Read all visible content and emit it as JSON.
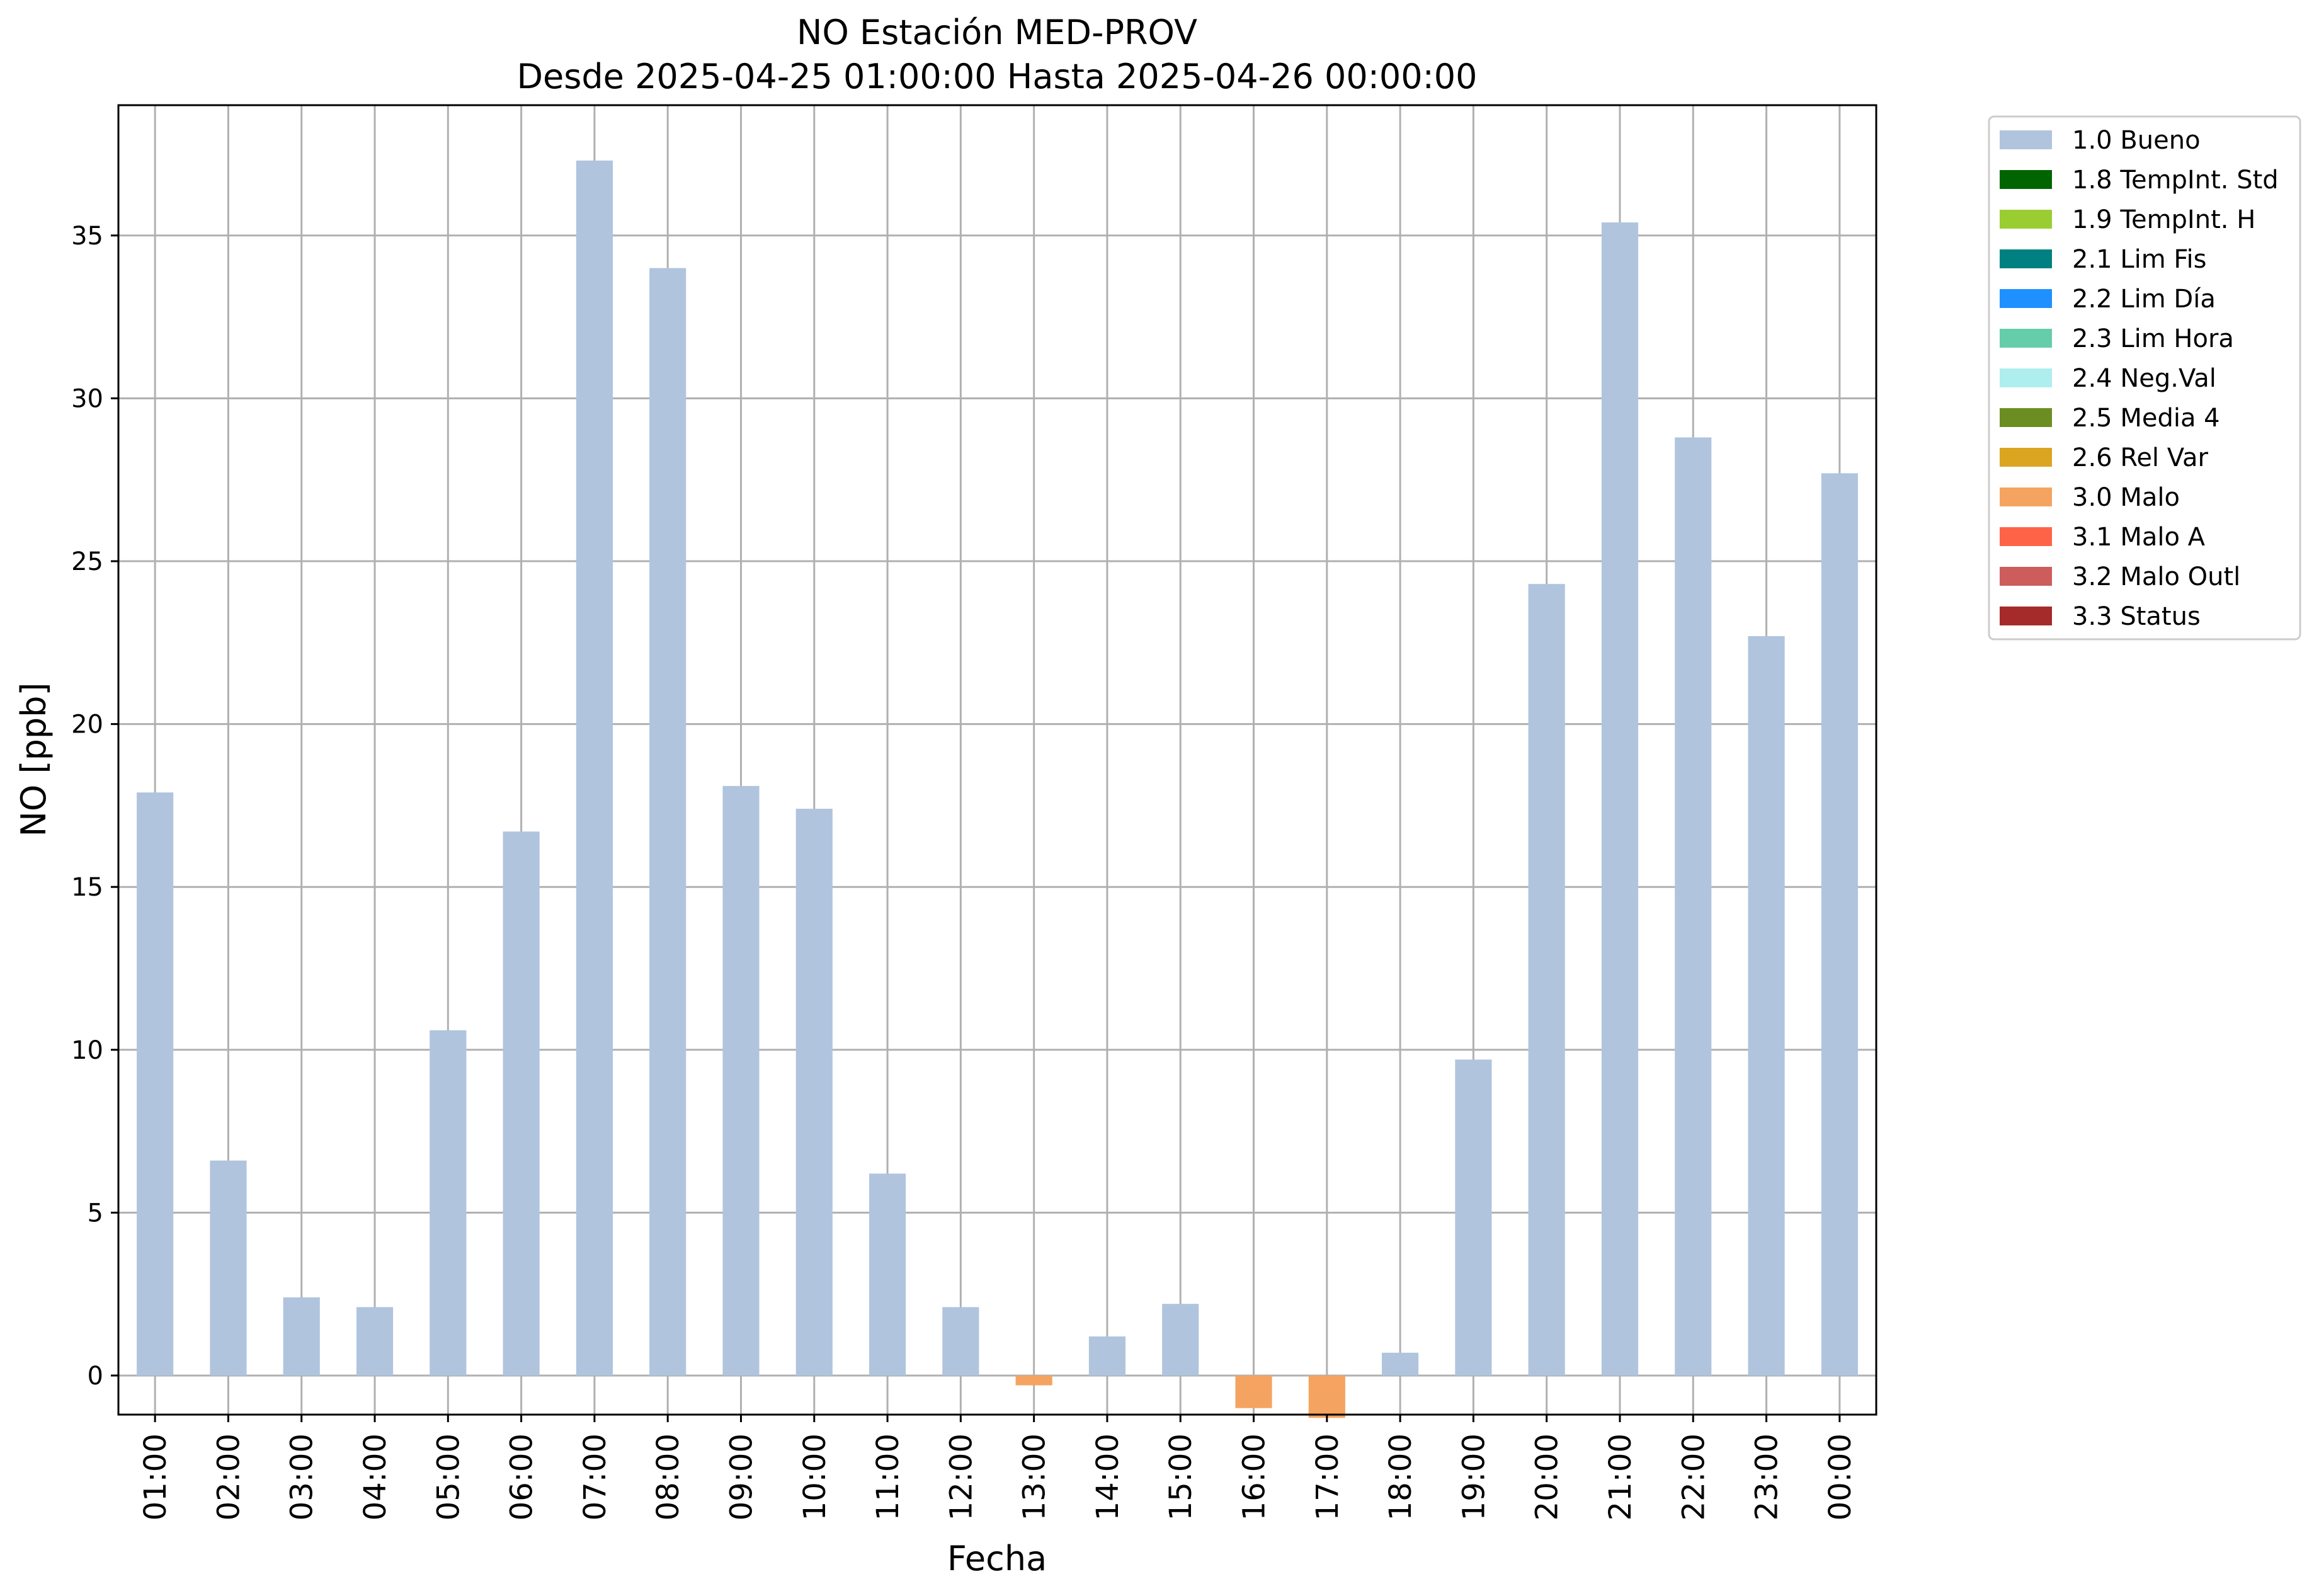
{
  "chart_data": {
    "type": "bar",
    "title": "NO Estación MED-PROV",
    "subtitle": "Desde 2025-04-25 01:00:00 Hasta 2025-04-26 00:00:00",
    "xlabel": "Fecha",
    "ylabel": "NO [ppb]",
    "ylim": [
      -1.2,
      39.0
    ],
    "yticks": [
      0,
      5,
      10,
      15,
      20,
      25,
      30,
      35
    ],
    "grid": true,
    "legend_position": "outside top-right",
    "categories": [
      "01:00",
      "02:00",
      "03:00",
      "04:00",
      "05:00",
      "06:00",
      "07:00",
      "08:00",
      "09:00",
      "10:00",
      "11:00",
      "12:00",
      "13:00",
      "14:00",
      "15:00",
      "16:00",
      "17:00",
      "18:00",
      "19:00",
      "20:00",
      "21:00",
      "22:00",
      "23:00",
      "00:00"
    ],
    "values": [
      17.9,
      6.6,
      2.4,
      2.1,
      10.6,
      16.7,
      37.3,
      34.0,
      18.1,
      17.4,
      6.2,
      2.1,
      -0.3,
      1.2,
      2.2,
      -1.0,
      -1.3,
      0.7,
      9.7,
      24.3,
      35.4,
      28.8,
      22.7,
      27.7
    ],
    "flags": [
      "1.0",
      "1.0",
      "1.0",
      "1.0",
      "1.0",
      "1.0",
      "1.0",
      "1.0",
      "1.0",
      "1.0",
      "1.0",
      "1.0",
      "3.0",
      "1.0",
      "1.0",
      "3.0",
      "3.0",
      "1.0",
      "1.0",
      "1.0",
      "1.0",
      "1.0",
      "1.0",
      "1.0"
    ],
    "legend": [
      {
        "code": "1.0",
        "label": "1.0 Bueno",
        "color": "#b0c4de"
      },
      {
        "code": "1.8",
        "label": "1.8 TempInt. Std",
        "color": "#006400"
      },
      {
        "code": "1.9",
        "label": "1.9 TempInt. H",
        "color": "#9acd32"
      },
      {
        "code": "2.1",
        "label": "2.1 Lim Fis",
        "color": "#008080"
      },
      {
        "code": "2.2",
        "label": "2.2 Lim Día",
        "color": "#1e90ff"
      },
      {
        "code": "2.3",
        "label": "2.3 Lim Hora",
        "color": "#66cdaa"
      },
      {
        "code": "2.4",
        "label": "2.4 Neg.Val",
        "color": "#afeeee"
      },
      {
        "code": "2.5",
        "label": "2.5 Media 4",
        "color": "#6b8e23"
      },
      {
        "code": "2.6",
        "label": "2.6 Rel Var",
        "color": "#daa520"
      },
      {
        "code": "3.0",
        "label": "3.0 Malo",
        "color": "#f4a460"
      },
      {
        "code": "3.1",
        "label": "3.1 Malo A",
        "color": "#ff6347"
      },
      {
        "code": "3.2",
        "label": "3.2 Malo Outl",
        "color": "#cd5c5c"
      },
      {
        "code": "3.3",
        "label": "3.3 Status",
        "color": "#a52a2a"
      }
    ]
  }
}
